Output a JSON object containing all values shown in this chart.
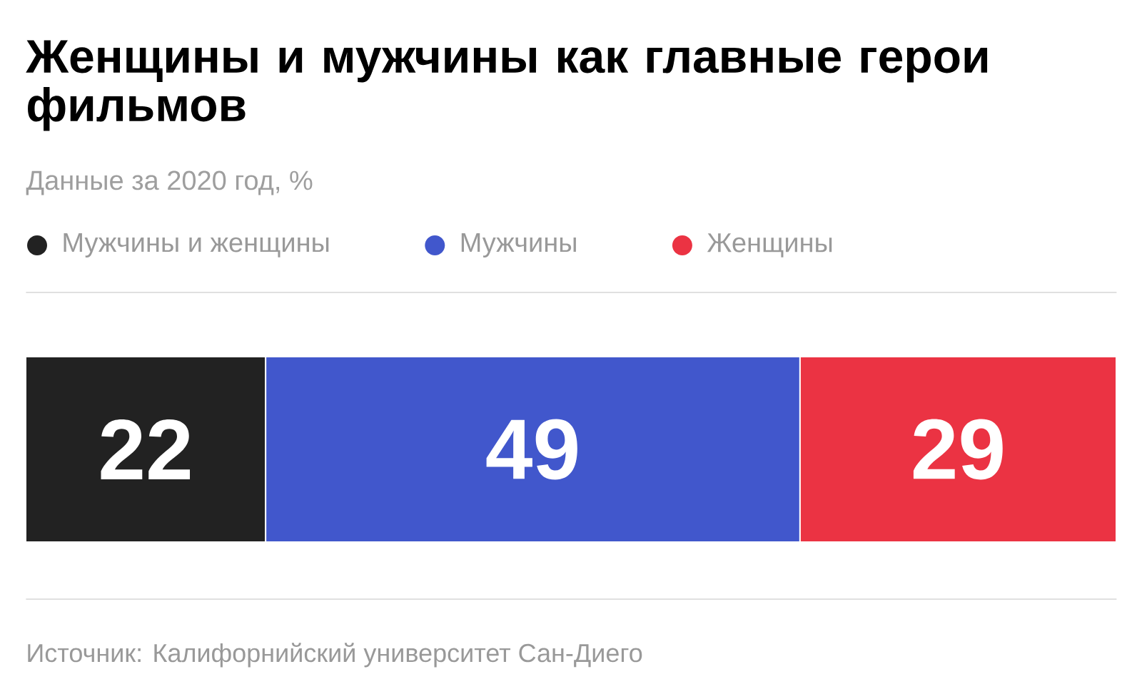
{
  "chart_data": {
    "type": "bar",
    "orientation": "horizontal",
    "stacked": true,
    "title": "Женщины и мужчины как главные герои фильмов",
    "subtitle": "Данные за 2020 год, %",
    "categories": [
      null
    ],
    "series": [
      {
        "name": "Мужчины и женщины",
        "color": "#222222",
        "values": [
          22
        ]
      },
      {
        "name": "Мужчины",
        "color": "#4157cc",
        "values": [
          49
        ]
      },
      {
        "name": "Женщины",
        "color": "#eb3343",
        "values": [
          29
        ]
      }
    ],
    "xlim": [
      0,
      100
    ],
    "data_labels": true,
    "legend": "top left",
    "annotations": [
      "Источник: Калифорнийский университет Сан-Диего"
    ]
  }
}
